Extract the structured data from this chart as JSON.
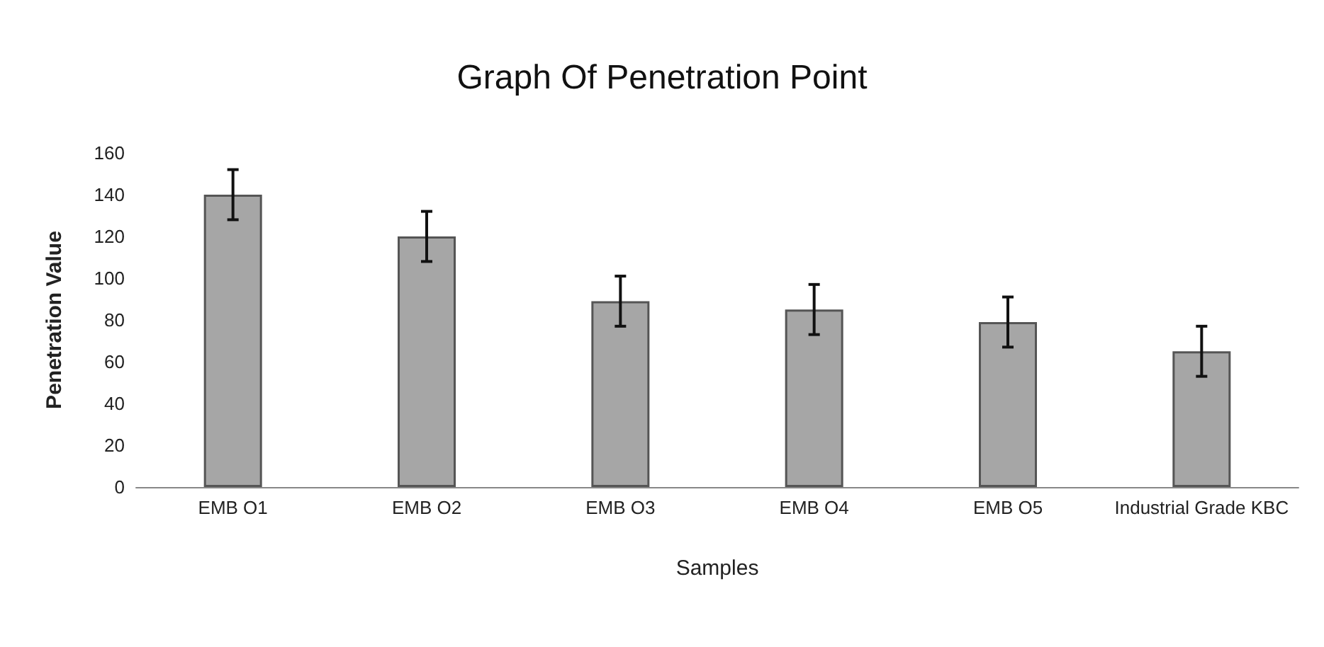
{
  "chart_data": {
    "type": "bar",
    "title": "Graph Of Penetration Point",
    "xlabel": "Samples",
    "ylabel": "Penetration Value",
    "categories": [
      "EMB O1",
      "EMB O2",
      "EMB O3",
      "EMB O4",
      "EMB O5",
      "Industrial Grade KBC"
    ],
    "values": [
      140,
      120,
      89,
      85,
      79,
      65
    ],
    "errors": [
      12,
      12,
      12,
      12,
      12,
      12
    ],
    "color": "#a6a6a6",
    "ylim": [
      0,
      160
    ],
    "yticks": [
      0,
      20,
      40,
      60,
      80,
      100,
      120,
      140,
      160
    ],
    "grid": false
  }
}
